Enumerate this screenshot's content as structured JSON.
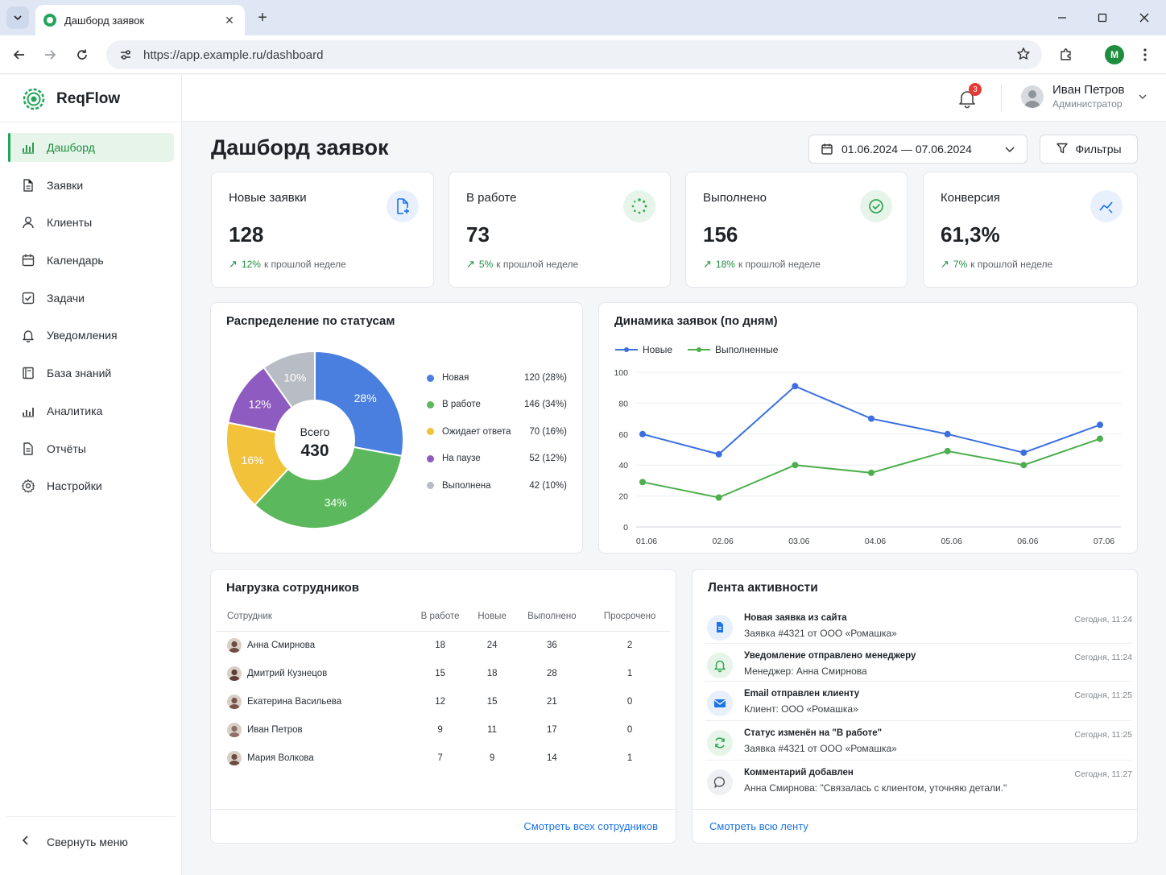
{
  "browser": {
    "tab_title": "Дашборд заявок",
    "url": "https://app.example.ru/dashboard",
    "profile_initial": "M"
  },
  "app": {
    "brand": "ReqFlow",
    "nav": [
      {
        "label": "Дашборд",
        "icon": "bar-chart-icon",
        "active": true
      },
      {
        "label": "Заявки",
        "icon": "document-icon"
      },
      {
        "label": "Клиенты",
        "icon": "user-icon"
      },
      {
        "label": "Календарь",
        "icon": "calendar-icon"
      },
      {
        "label": "Задачи",
        "icon": "checkbox-icon"
      },
      {
        "label": "Уведомления",
        "icon": "bell-icon"
      },
      {
        "label": "База знаний",
        "icon": "book-icon"
      },
      {
        "label": "Аналитика",
        "icon": "analytics-icon"
      },
      {
        "label": "Отчёты",
        "icon": "report-icon"
      },
      {
        "label": "Настройки",
        "icon": "gear-icon"
      }
    ],
    "collapse_label": "Свернуть меню"
  },
  "header": {
    "notifications_count": "3",
    "user_name": "Иван Петров",
    "user_role": "Администратор"
  },
  "page": {
    "title": "Дашборд заявок",
    "date_range": "01.06.2024 — 07.06.2024",
    "filters_label": "Фильтры"
  },
  "kpis": [
    {
      "label": "Новые заявки",
      "value": "128",
      "delta": "12%",
      "delta_text": "к прошлой неделе",
      "icon": "file-plus-icon",
      "icon_bg": "#e8f0fe",
      "icon_color": "#1a73e8"
    },
    {
      "label": "В работе",
      "value": "73",
      "delta": "5%",
      "delta_text": "к прошлой неделе",
      "icon": "loader-icon",
      "icon_bg": "#e6f4ea",
      "icon_color": "#34a853"
    },
    {
      "label": "Выполнено",
      "value": "156",
      "delta": "18%",
      "delta_text": "к прошлой неделе",
      "icon": "check-circle-icon",
      "icon_bg": "#e6f4ea",
      "icon_color": "#34a853"
    },
    {
      "label": "Конверсия",
      "value": "61,3%",
      "delta": "7%",
      "delta_text": "к прошлой неделе",
      "icon": "trend-icon",
      "icon_bg": "#e8f0fe",
      "icon_color": "#1a73e8"
    }
  ],
  "status_chart": {
    "title": "Распределение по статусам",
    "center_label": "Всего",
    "center_value": "430"
  },
  "trend_chart": {
    "title": "Динамика заявок (по дням)"
  },
  "chart_data": [
    {
      "type": "pie",
      "title": "Распределение по статусам",
      "labels": [
        "Новая",
        "В работе",
        "Ожидает ответа",
        "На паузе",
        "Выполнена"
      ],
      "values": [
        120,
        146,
        70,
        52,
        42
      ],
      "value_labels": [
        "120 (28%)",
        "146 (34%)",
        "70 (16%)",
        "52 (12%)",
        "42 (10%)"
      ],
      "slice_labels": [
        "28%",
        "34%",
        "16%",
        "12%",
        "10%"
      ],
      "colors": [
        "#4a7fdf",
        "#5cb85c",
        "#f2c23a",
        "#8e5cc0",
        "#b8bcc4"
      ],
      "total": 430
    },
    {
      "type": "line",
      "title": "Динамика заявок (по дням)",
      "x": [
        "01.06",
        "02.06",
        "03.06",
        "04.06",
        "05.06",
        "06.06",
        "07.06"
      ],
      "series": [
        {
          "name": "Новые",
          "values": [
            60,
            47,
            91,
            70,
            60,
            48,
            66
          ],
          "color": "#3b6fe0"
        },
        {
          "name": "Выполненные",
          "values": [
            29,
            19,
            40,
            35,
            49,
            40,
            57
          ],
          "color": "#4cae4c"
        }
      ],
      "ylim": [
        0,
        100
      ],
      "yticks": [
        0,
        20,
        40,
        60,
        80,
        100
      ],
      "grid": true,
      "legend": "top-left"
    }
  ],
  "workload": {
    "title": "Нагрузка сотрудников",
    "columns": [
      "Сотрудник",
      "В работе",
      "Новые",
      "Выполнено",
      "Просрочено"
    ],
    "rows": [
      {
        "name": "Анна Смирнова",
        "in_work": "18",
        "new": "24",
        "done": "36",
        "overdue": "2"
      },
      {
        "name": "Дмитрий Кузнецов",
        "in_work": "15",
        "new": "18",
        "done": "28",
        "overdue": "1"
      },
      {
        "name": "Екатерина Васильева",
        "in_work": "12",
        "new": "15",
        "done": "21",
        "overdue": "0"
      },
      {
        "name": "Иван Петров",
        "in_work": "9",
        "new": "11",
        "done": "17",
        "overdue": "0"
      },
      {
        "name": "Мария Волкова",
        "in_work": "7",
        "new": "9",
        "done": "14",
        "overdue": "1"
      }
    ],
    "link": "Смотреть всех сотрудников"
  },
  "activity": {
    "title": "Лента активности",
    "items": [
      {
        "title": "Новая заявка из сайта",
        "subtitle": "Заявка #4321 от ООО «Ромашка»",
        "time": "Сегодня, 11:24",
        "icon": "document-icon"
      },
      {
        "title": "Уведомление отправлено менеджеру",
        "subtitle": "Менеджер: Анна Смирнова",
        "time": "Сегодня, 11:24",
        "icon": "bell-icon"
      },
      {
        "title": "Email отправлен клиенту",
        "subtitle": "Клиент: ООО «Ромашка»",
        "time": "Сегодня, 11:25",
        "icon": "mail-icon"
      },
      {
        "title": "Статус изменён на \"В работе\"",
        "subtitle": "Заявка #4321 от ООО «Ромашка»",
        "time": "Сегодня, 11:25",
        "icon": "refresh-icon"
      },
      {
        "title": "Комментарий добавлен",
        "subtitle": "Анна Смирнова: \"Связалась с клиентом, уточняю детали.\"",
        "time": "Сегодня, 11:27",
        "icon": "comment-icon"
      }
    ],
    "link": "Смотреть всю ленту"
  }
}
